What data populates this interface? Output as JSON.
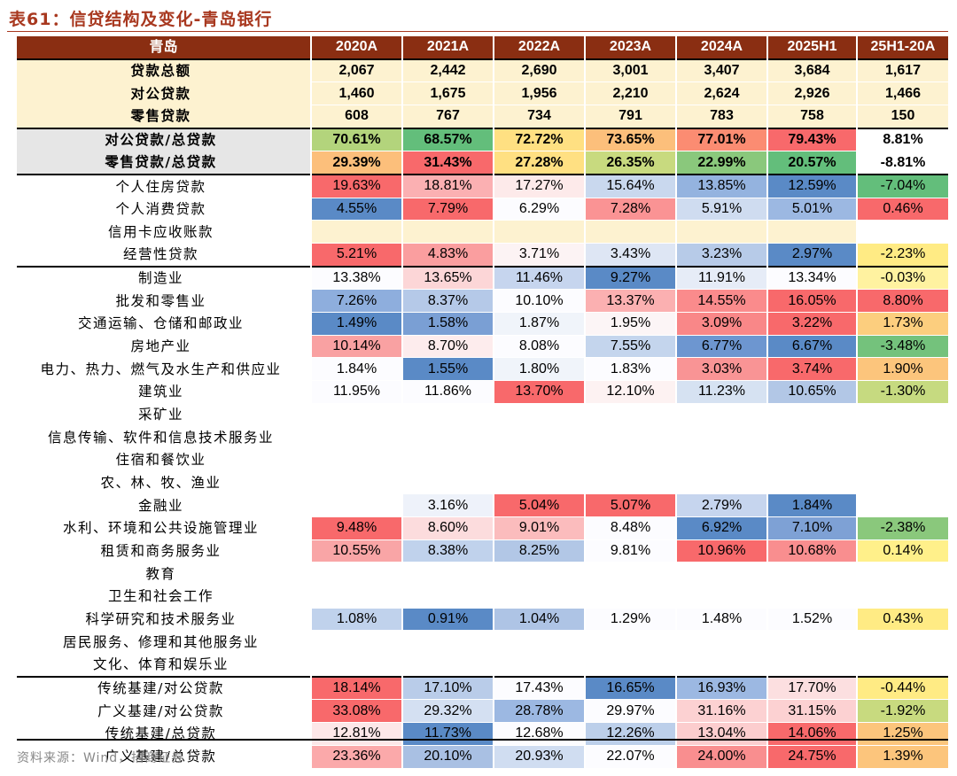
{
  "title": "表61：信贷结构及变化-青岛银行",
  "source": "资料来源：Wind，招商证券",
  "chart_data": {
    "type": "table",
    "columns": [
      "青岛",
      "2020A",
      "2021A",
      "2022A",
      "2023A",
      "2024A",
      "2025H1",
      "25H1-20A"
    ],
    "rows": [
      {
        "label": "贷款总额",
        "values": [
          "2,067",
          "2,442",
          "2,690",
          "3,001",
          "3,407",
          "3,684",
          "1,617"
        ],
        "colors": [
          "#fdf2d0",
          "#fdf2d0",
          "#fdf2d0",
          "#fdf2d0",
          "#fdf2d0",
          "#fdf2d0",
          "#fdf2d0"
        ],
        "bold": true,
        "section": "top"
      },
      {
        "label": "对公贷款",
        "values": [
          "1,460",
          "1,675",
          "1,956",
          "2,210",
          "2,624",
          "2,926",
          "1,466"
        ],
        "colors": [
          "#fdf2d0",
          "#fdf2d0",
          "#fdf2d0",
          "#fdf2d0",
          "#fdf2d0",
          "#fdf2d0",
          "#fdf2d0"
        ],
        "bold": true
      },
      {
        "label": "零售贷款",
        "values": [
          "608",
          "767",
          "734",
          "791",
          "783",
          "758",
          "150"
        ],
        "colors": [
          "#fdf2d0",
          "#fdf2d0",
          "#fdf2d0",
          "#fdf2d0",
          "#fdf2d0",
          "#fdf2d0",
          "#fdf2d0"
        ],
        "bold": true
      },
      {
        "label": "对公贷款/总贷款",
        "values": [
          "70.61%",
          "68.57%",
          "72.72%",
          "73.65%",
          "77.01%",
          "79.43%",
          "8.81%"
        ],
        "colors": [
          "#b3d47c",
          "#63be7b",
          "#ffe082",
          "#fcbf7b",
          "#fb8c72",
          "#f8696b",
          "#ffffff"
        ],
        "bold": true,
        "label_bg": "#e6e6e6",
        "section": "top"
      },
      {
        "label": "零售贷款/总贷款",
        "values": [
          "29.39%",
          "31.43%",
          "27.28%",
          "26.35%",
          "22.99%",
          "20.57%",
          "-8.81%"
        ],
        "colors": [
          "#fcbf7b",
          "#f8696b",
          "#ffe082",
          "#c8da7f",
          "#8ac87c",
          "#63be7b",
          "#ffffff"
        ],
        "bold": true,
        "label_bg": "#e6e6e6"
      },
      {
        "label": "个人住房贷款",
        "values": [
          "19.63%",
          "18.81%",
          "17.27%",
          "15.64%",
          "13.85%",
          "12.59%",
          "-7.04%"
        ],
        "colors": [
          "#f8696b",
          "#fbb0b2",
          "#fdeaea",
          "#c9d8ee",
          "#94b3df",
          "#5a8ac6",
          "#63be7b"
        ],
        "section": "top"
      },
      {
        "label": "个人消费贷款",
        "values": [
          "4.55%",
          "7.79%",
          "6.29%",
          "7.28%",
          "5.91%",
          "5.01%",
          "0.46%"
        ],
        "colors": [
          "#5a8ac6",
          "#f8696b",
          "#fcfcff",
          "#fa9394",
          "#cfdcf0",
          "#9cb8e2",
          "#f8696b"
        ]
      },
      {
        "label": "信用卡应收账款",
        "values": [
          "",
          "",
          "",
          "",
          "",
          "",
          ""
        ],
        "colors": [
          "#fdf2d0",
          "#fdf2d0",
          "#fdf2d0",
          "#fdf2d0",
          "#fdf2d0",
          "#fdf2d0",
          "#ffffff"
        ]
      },
      {
        "label": "经营性贷款",
        "values": [
          "5.21%",
          "4.83%",
          "3.71%",
          "3.43%",
          "3.23%",
          "2.97%",
          "-2.23%"
        ],
        "colors": [
          "#f8696b",
          "#fa9e9f",
          "#fcf3f4",
          "#dee6f4",
          "#b7cbe8",
          "#5a8ac6",
          "#ffeb84"
        ]
      },
      {
        "label": "制造业",
        "values": [
          "13.38%",
          "13.65%",
          "11.46%",
          "9.27%",
          "11.91%",
          "13.34%",
          "-0.03%"
        ],
        "colors": [
          "#fcfcff",
          "#fcd6d7",
          "#c6d5ee",
          "#5a8ac6",
          "#e6ecf7",
          "#fcfcff",
          "#fff2a0"
        ],
        "section": "top"
      },
      {
        "label": "批发和零售业",
        "values": [
          "7.26%",
          "8.37%",
          "10.10%",
          "13.37%",
          "14.55%",
          "16.05%",
          "8.80%"
        ],
        "colors": [
          "#8eaedd",
          "#b5c9e8",
          "#fcfcff",
          "#fbb0b1",
          "#fa8b8c",
          "#f8696b",
          "#f8696b"
        ]
      },
      {
        "label": "交通运输、仓储和邮政业",
        "values": [
          "1.49%",
          "1.58%",
          "1.87%",
          "1.95%",
          "3.09%",
          "3.22%",
          "1.73%"
        ],
        "colors": [
          "#5a8ac6",
          "#7a9fd4",
          "#f0f4fa",
          "#fcf5f6",
          "#f98788",
          "#f8696b",
          "#fcce7e"
        ]
      },
      {
        "label": "房地产业",
        "values": [
          "10.14%",
          "8.70%",
          "8.08%",
          "7.55%",
          "6.77%",
          "6.67%",
          "-3.48%"
        ],
        "colors": [
          "#f9a1a2",
          "#fdeced",
          "#fcfcff",
          "#c4d5ed",
          "#6d96d0",
          "#5a8ac6",
          "#74c27c"
        ]
      },
      {
        "label": "电力、热力、燃气及水生产和供应业",
        "values": [
          "1.84%",
          "1.55%",
          "1.80%",
          "1.83%",
          "3.03%",
          "3.74%",
          "1.90%"
        ],
        "colors": [
          "#fcfcff",
          "#5a8ac6",
          "#f0f4fa",
          "#fcfcff",
          "#f99495",
          "#f8696b",
          "#fcc57c"
        ]
      },
      {
        "label": "建筑业",
        "values": [
          "11.95%",
          "11.86%",
          "13.70%",
          "12.10%",
          "11.23%",
          "10.65%",
          "-1.30%"
        ],
        "colors": [
          "#fcfcff",
          "#fcfcff",
          "#f8696b",
          "#fdf2f2",
          "#d6e2f2",
          "#b2c7e6",
          "#c6da80"
        ]
      },
      {
        "label": "采矿业",
        "values": [
          "",
          "",
          "",
          "",
          "",
          "",
          ""
        ],
        "colors": [
          "#ffffff",
          "#ffffff",
          "#ffffff",
          "#ffffff",
          "#ffffff",
          "#ffffff",
          "#ffffff"
        ]
      },
      {
        "label": "信息传输、软件和信息技术服务业",
        "values": [
          "",
          "",
          "",
          "",
          "",
          "",
          ""
        ],
        "colors": [
          "#ffffff",
          "#ffffff",
          "#ffffff",
          "#ffffff",
          "#ffffff",
          "#ffffff",
          "#ffffff"
        ]
      },
      {
        "label": "住宿和餐饮业",
        "values": [
          "",
          "",
          "",
          "",
          "",
          "",
          ""
        ],
        "colors": [
          "#ffffff",
          "#ffffff",
          "#ffffff",
          "#ffffff",
          "#ffffff",
          "#ffffff",
          "#ffffff"
        ]
      },
      {
        "label": "农、林、牧、渔业",
        "values": [
          "",
          "",
          "",
          "",
          "",
          "",
          ""
        ],
        "colors": [
          "#ffffff",
          "#ffffff",
          "#ffffff",
          "#ffffff",
          "#ffffff",
          "#ffffff",
          "#ffffff"
        ]
      },
      {
        "label": "金融业",
        "values": [
          "",
          "3.16%",
          "5.04%",
          "5.07%",
          "2.79%",
          "1.84%",
          ""
        ],
        "colors": [
          "#ffffff",
          "#eef2fa",
          "#f8696b",
          "#f8696b",
          "#c6d5ee",
          "#5a8ac6",
          "#ffffff"
        ]
      },
      {
        "label": "水利、环境和公共设施管理业",
        "values": [
          "9.48%",
          "8.60%",
          "9.01%",
          "8.48%",
          "6.92%",
          "7.10%",
          "-2.38%"
        ],
        "colors": [
          "#f8696b",
          "#fcdcdd",
          "#fbbcbd",
          "#fcfcff",
          "#5a8ac6",
          "#7ea1d5",
          "#8ac87c"
        ]
      },
      {
        "label": "租赁和商务服务业",
        "values": [
          "10.55%",
          "8.38%",
          "8.25%",
          "9.81%",
          "10.96%",
          "10.68%",
          "0.14%"
        ],
        "colors": [
          "#f9a5a6",
          "#c0d2ec",
          "#b2c7e6",
          "#fcfcff",
          "#f8696b",
          "#f98e8f",
          "#fff08a"
        ]
      },
      {
        "label": "教育",
        "values": [
          "",
          "",
          "",
          "",
          "",
          "",
          ""
        ],
        "colors": [
          "#ffffff",
          "#ffffff",
          "#ffffff",
          "#ffffff",
          "#ffffff",
          "#ffffff",
          "#ffffff"
        ]
      },
      {
        "label": "卫生和社会工作",
        "values": [
          "",
          "",
          "",
          "",
          "",
          "",
          ""
        ],
        "colors": [
          "#ffffff",
          "#ffffff",
          "#ffffff",
          "#ffffff",
          "#ffffff",
          "#ffffff",
          "#ffffff"
        ]
      },
      {
        "label": "科学研究和技术服务业",
        "values": [
          "1.08%",
          "0.91%",
          "1.04%",
          "1.29%",
          "1.48%",
          "1.52%",
          "0.43%"
        ],
        "colors": [
          "#c0d2ec",
          "#5a8ac6",
          "#aec4e5",
          "#fcfcff",
          "#fcfcff",
          "#fcfcff",
          "#ffeb84"
        ]
      },
      {
        "label": "居民服务、修理和其他服务业",
        "values": [
          "",
          "",
          "",
          "",
          "",
          "",
          ""
        ],
        "colors": [
          "#ffffff",
          "#ffffff",
          "#ffffff",
          "#ffffff",
          "#ffffff",
          "#ffffff",
          "#ffffff"
        ]
      },
      {
        "label": "文化、体育和娱乐业",
        "values": [
          "",
          "",
          "",
          "",
          "",
          "",
          ""
        ],
        "colors": [
          "#ffffff",
          "#ffffff",
          "#ffffff",
          "#ffffff",
          "#ffffff",
          "#ffffff",
          "#ffffff"
        ]
      },
      {
        "label": "传统基建/对公贷款",
        "values": [
          "18.14%",
          "17.10%",
          "17.43%",
          "16.65%",
          "16.93%",
          "17.70%",
          "-0.44%"
        ],
        "colors": [
          "#f8696b",
          "#b9cce9",
          "#fcfcff",
          "#5a8ac6",
          "#9cb8e2",
          "#fcdfe0",
          "#ffeb84"
        ],
        "section": "top"
      },
      {
        "label": "广义基建/对公贷款",
        "values": [
          "33.08%",
          "29.32%",
          "28.78%",
          "29.97%",
          "31.16%",
          "31.15%",
          "-1.92%"
        ],
        "colors": [
          "#f8696b",
          "#d4e0f2",
          "#9cb8e2",
          "#fcfcff",
          "#fcd1d2",
          "#fcd1d2",
          "#c8da7f"
        ]
      },
      {
        "label": "传统基建/总贷款",
        "values": [
          "12.81%",
          "11.73%",
          "12.68%",
          "12.26%",
          "13.04%",
          "14.06%",
          "1.25%"
        ],
        "colors": [
          "#fde7e8",
          "#5a8ac6",
          "#fcfcff",
          "#bccfea",
          "#fccdce",
          "#f8696b",
          "#fcc57c"
        ]
      },
      {
        "label": "广义基建/总贷款",
        "values": [
          "23.36%",
          "20.10%",
          "20.93%",
          "22.07%",
          "24.00%",
          "24.75%",
          "1.39%"
        ],
        "colors": [
          "#fba9aa",
          "#a9c0e3",
          "#d0ddf1",
          "#fcfcff",
          "#f98e8f",
          "#f8696b",
          "#fcc57c"
        ]
      }
    ]
  }
}
